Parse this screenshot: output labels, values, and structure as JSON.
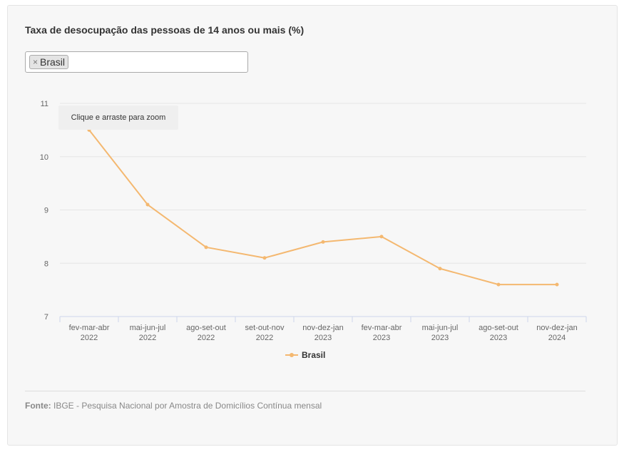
{
  "title": "Taxa de desocupação das pessoas de 14 anos ou mais (%)",
  "filter": {
    "remove_symbol": "×",
    "selected": "Brasil"
  },
  "tooltip": "Clique e arraste para zoom",
  "source": {
    "label": "Fonte:",
    "text": " IBGE - Pesquisa Nacional por Amostra de Domicílios Contínua mensal"
  },
  "colors": {
    "series": "#f4b870",
    "grid": "#e6e6e6",
    "axis": "#ccd6eb"
  },
  "chart_data": {
    "type": "line",
    "categories": [
      [
        "fev-mar-abr",
        "2022"
      ],
      [
        "mai-jun-jul",
        "2022"
      ],
      [
        "ago-set-out",
        "2022"
      ],
      [
        "set-out-nov",
        "2022"
      ],
      [
        "nov-dez-jan",
        "2023"
      ],
      [
        "fev-mar-abr",
        "2023"
      ],
      [
        "mai-jun-jul",
        "2023"
      ],
      [
        "ago-set-out",
        "2023"
      ],
      [
        "nov-dez-jan",
        "2024"
      ]
    ],
    "series": [
      {
        "name": "Brasil",
        "values": [
          10.5,
          9.1,
          8.3,
          8.1,
          8.4,
          8.5,
          7.9,
          7.6,
          7.6
        ]
      }
    ],
    "ylim": [
      7,
      11
    ],
    "yticks": [
      7,
      8,
      9,
      10,
      11
    ],
    "grid": true,
    "legend": "bottom-center"
  }
}
